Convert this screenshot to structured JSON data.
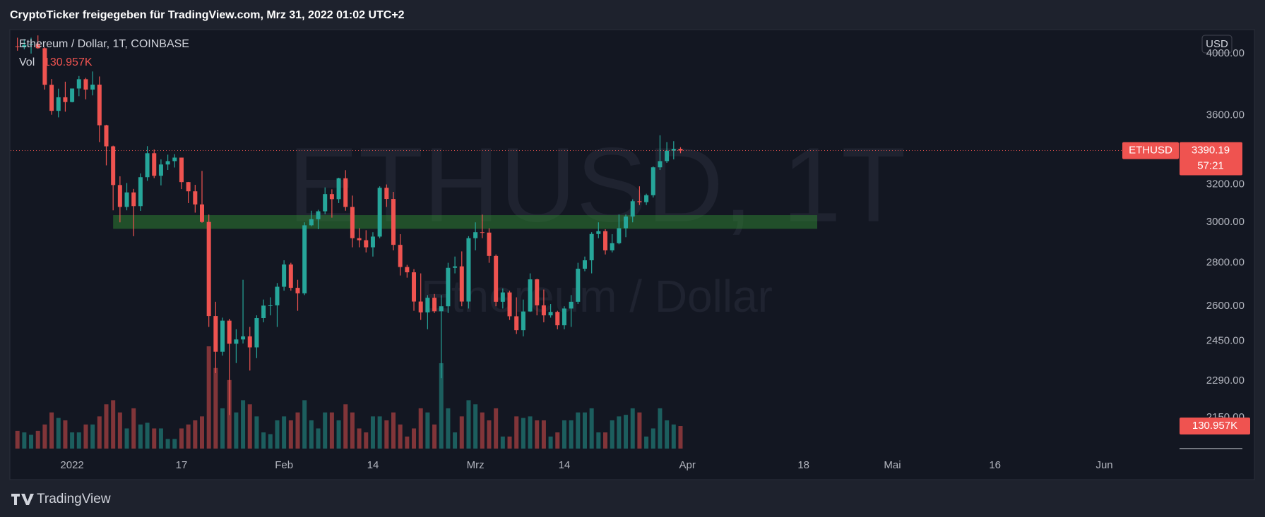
{
  "header": "CryptoTicker freigegeben für TradingView.com, Mrz 31, 2022 01:02 UTC+2",
  "footer": "TradingView",
  "chart_data": {
    "type": "candlestick",
    "legend_title": "Ethereum / Dollar, 1T, COINBASE",
    "volume_name": "Vol",
    "last_volume_label": "130.957K",
    "watermark": [
      "ETHUSD, 1T",
      "Ethereum / Dollar"
    ],
    "currency": "USD",
    "symbol": "ETHUSD",
    "countdown": "57:21",
    "up_color": "#26a69a",
    "down_color": "#ef5350",
    "log_scale": true,
    "ylim": [
      2030,
      4167
    ],
    "yticks": [
      {
        "value": 2150,
        "label": "2150.00"
      },
      {
        "value": 2290,
        "label": "2290.00"
      },
      {
        "value": 2450,
        "label": "2450.00"
      },
      {
        "value": 2600,
        "label": "2600.00"
      },
      {
        "value": 2800,
        "label": "2800.00"
      },
      {
        "value": 3000,
        "label": "3000.00"
      },
      {
        "value": 3200,
        "label": "3200.00"
      },
      {
        "value": 3600,
        "label": "3600.00"
      },
      {
        "value": 4000,
        "label": "4000.00"
      }
    ],
    "xlim": [
      "2021-12-23",
      "2022-06-12"
    ],
    "xticks": [
      {
        "value": "2022-01-01",
        "label": "2022"
      },
      {
        "value": "2022-01-17",
        "label": "17"
      },
      {
        "value": "2022-02-01",
        "label": "Feb"
      },
      {
        "value": "2022-02-14",
        "label": "14"
      },
      {
        "value": "2022-03-01",
        "label": "Mrz"
      },
      {
        "value": "2022-03-14",
        "label": "14"
      },
      {
        "value": "2022-04-01",
        "label": "Apr"
      },
      {
        "value": "2022-04-18",
        "label": "18"
      },
      {
        "value": "2022-05-01",
        "label": "Mai"
      },
      {
        "value": "2022-05-16",
        "label": "16"
      },
      {
        "value": "2022-06-01",
        "label": "Jun"
      }
    ],
    "zone": {
      "y": [
        2967,
        3037
      ],
      "x": [
        "2022-01-07",
        "2022-04-20"
      ],
      "color": "#2e7d32"
    },
    "x": [
      "2021-12-24",
      "2021-12-25",
      "2021-12-26",
      "2021-12-27",
      "2021-12-28",
      "2021-12-29",
      "2021-12-30",
      "2021-12-31",
      "2022-01-01",
      "2022-01-02",
      "2022-01-03",
      "2022-01-04",
      "2022-01-05",
      "2022-01-06",
      "2022-01-07",
      "2022-01-08",
      "2022-01-09",
      "2022-01-10",
      "2022-01-11",
      "2022-01-12",
      "2022-01-13",
      "2022-01-14",
      "2022-01-15",
      "2022-01-16",
      "2022-01-17",
      "2022-01-18",
      "2022-01-19",
      "2022-01-20",
      "2022-01-21",
      "2022-01-22",
      "2022-01-23",
      "2022-01-24",
      "2022-01-25",
      "2022-01-26",
      "2022-01-27",
      "2022-01-28",
      "2022-01-29",
      "2022-01-30",
      "2022-01-31",
      "2022-02-01",
      "2022-02-02",
      "2022-02-03",
      "2022-02-04",
      "2022-02-05",
      "2022-02-06",
      "2022-02-07",
      "2022-02-08",
      "2022-02-09",
      "2022-02-10",
      "2022-02-11",
      "2022-02-12",
      "2022-02-13",
      "2022-02-14",
      "2022-02-15",
      "2022-02-16",
      "2022-02-17",
      "2022-02-18",
      "2022-02-19",
      "2022-02-20",
      "2022-02-21",
      "2022-02-22",
      "2022-02-23",
      "2022-02-24",
      "2022-02-25",
      "2022-02-26",
      "2022-02-27",
      "2022-02-28",
      "2022-03-01",
      "2022-03-02",
      "2022-03-03",
      "2022-03-04",
      "2022-03-05",
      "2022-03-06",
      "2022-03-07",
      "2022-03-08",
      "2022-03-09",
      "2022-03-10",
      "2022-03-11",
      "2022-03-12",
      "2022-03-13",
      "2022-03-14",
      "2022-03-15",
      "2022-03-16",
      "2022-03-17",
      "2022-03-18",
      "2022-03-19",
      "2022-03-20",
      "2022-03-21",
      "2022-03-22",
      "2022-03-23",
      "2022-03-24",
      "2022-03-25",
      "2022-03-26",
      "2022-03-27",
      "2022-03-28",
      "2022-03-29",
      "2022-03-30",
      "2022-03-31"
    ],
    "open": [
      4050,
      4045,
      4060,
      4065,
      4037,
      3793,
      3628,
      3713,
      3683,
      3769,
      3829,
      3762,
      3794,
      3540,
      3415,
      3197,
      3080,
      3157,
      3084,
      3240,
      3375,
      3248,
      3311,
      3330,
      3350,
      3213,
      3163,
      3093,
      3002,
      2557,
      2406,
      2537,
      2439,
      2457,
      2470,
      2424,
      2548,
      2603,
      2604,
      2688,
      2792,
      2683,
      2658,
      2985,
      3016,
      3057,
      3148,
      3121,
      3234,
      3080,
      2920,
      2910,
      2875,
      2928,
      3182,
      3122,
      2887,
      2780,
      2755,
      2621,
      2573,
      2638,
      2578,
      2600,
      2776,
      2783,
      2621,
      2920,
      2950,
      2948,
      2833,
      2620,
      2662,
      2556,
      2496,
      2577,
      2722,
      2604,
      2560,
      2575,
      2517,
      2590,
      2620,
      2772,
      2812,
      2941,
      2955,
      2860,
      2895,
      2970,
      3030,
      3110,
      3105,
      3142,
      3295,
      3330,
      3390,
      3400
    ],
    "high": [
      4110,
      4100,
      4110,
      4126,
      4043,
      3830,
      3768,
      3813,
      3769,
      3850,
      3838,
      3880,
      3847,
      3543,
      3419,
      3245,
      3208,
      3176,
      3261,
      3416,
      3397,
      3340,
      3367,
      3370,
      3350,
      3214,
      3198,
      3275,
      3040,
      2620,
      2550,
      2545,
      2500,
      2720,
      2510,
      2560,
      2630,
      2640,
      2705,
      2812,
      2800,
      2720,
      3000,
      3060,
      3065,
      3184,
      3174,
      3237,
      3279,
      3140,
      2970,
      2960,
      2950,
      3190,
      3200,
      3160,
      2940,
      2790,
      2770,
      2750,
      2650,
      2655,
      2650,
      2800,
      2830,
      2855,
      2930,
      3000,
      3040,
      2970,
      2840,
      2680,
      2670,
      2640,
      2630,
      2750,
      2725,
      2675,
      2610,
      2580,
      2600,
      2650,
      2800,
      2830,
      2950,
      3000,
      2965,
      2940,
      3040,
      3040,
      3120,
      3190,
      3150,
      3300,
      3480,
      3440,
      3445,
      3410
    ],
    "low": [
      4020,
      4030,
      4000,
      4033,
      3762,
      3604,
      3588,
      3623,
      3681,
      3720,
      3700,
      3725,
      3440,
      3306,
      3062,
      3000,
      3062,
      2930,
      3059,
      3220,
      3235,
      3195,
      3280,
      3294,
      3175,
      3100,
      3050,
      2998,
      2510,
      2320,
      2390,
      2160,
      2360,
      2440,
      2330,
      2380,
      2530,
      2560,
      2510,
      2670,
      2670,
      2580,
      2650,
      2980,
      2965,
      3042,
      3024,
      3100,
      3060,
      2875,
      2875,
      2850,
      2830,
      2920,
      3080,
      2860,
      2740,
      2730,
      2580,
      2540,
      2500,
      2570,
      2300,
      2570,
      2750,
      2600,
      2590,
      2860,
      2920,
      2800,
      2600,
      2590,
      2540,
      2480,
      2470,
      2575,
      2560,
      2530,
      2550,
      2500,
      2500,
      2510,
      2610,
      2760,
      2750,
      2920,
      2840,
      2850,
      2890,
      2925,
      3000,
      3090,
      3090,
      3130,
      3280,
      3320,
      3340,
      3375
    ],
    "close": [
      4045,
      4060,
      4065,
      4037,
      3793,
      3628,
      3713,
      3683,
      3769,
      3829,
      3762,
      3794,
      3540,
      3415,
      3197,
      3080,
      3157,
      3084,
      3240,
      3375,
      3248,
      3311,
      3330,
      3350,
      3213,
      3163,
      3093,
      3002,
      2557,
      2406,
      2537,
      2439,
      2457,
      2470,
      2424,
      2548,
      2603,
      2604,
      2688,
      2792,
      2683,
      2658,
      2985,
      3016,
      3057,
      3148,
      3121,
      3234,
      3080,
      2920,
      2910,
      2875,
      2928,
      3182,
      3122,
      2887,
      2780,
      2755,
      2621,
      2573,
      2638,
      2578,
      2600,
      2776,
      2783,
      2621,
      2920,
      2950,
      2948,
      2833,
      2620,
      2662,
      2556,
      2496,
      2577,
      2722,
      2604,
      2560,
      2575,
      2517,
      2590,
      2620,
      2772,
      2812,
      2941,
      2955,
      2860,
      2895,
      2970,
      3030,
      3110,
      3105,
      3142,
      3295,
      3330,
      3390,
      3400,
      3390.19
    ],
    "volume": [
      103000,
      94000,
      80000,
      103000,
      140000,
      210000,
      178000,
      164000,
      94000,
      94000,
      140000,
      140000,
      187000,
      257000,
      281000,
      210000,
      117000,
      234000,
      140000,
      150000,
      117000,
      117000,
      56000,
      56000,
      117000,
      140000,
      164000,
      187000,
      594000,
      468000,
      234000,
      398000,
      210000,
      281000,
      257000,
      187000,
      94000,
      84000,
      164000,
      187000,
      164000,
      210000,
      281000,
      164000,
      117000,
      210000,
      210000,
      164000,
      257000,
      210000,
      117000,
      94000,
      187000,
      187000,
      164000,
      210000,
      140000,
      70000,
      117000,
      234000,
      210000,
      140000,
      496000,
      234000,
      94000,
      187000,
      281000,
      257000,
      210000,
      164000,
      234000,
      70000,
      70000,
      187000,
      178000,
      187000,
      164000,
      164000,
      70000,
      94000,
      164000,
      164000,
      210000,
      210000,
      234000,
      94000,
      94000,
      164000,
      187000,
      196000,
      234000,
      210000,
      70000,
      117000,
      234000,
      164000,
      140000,
      130957
    ]
  }
}
